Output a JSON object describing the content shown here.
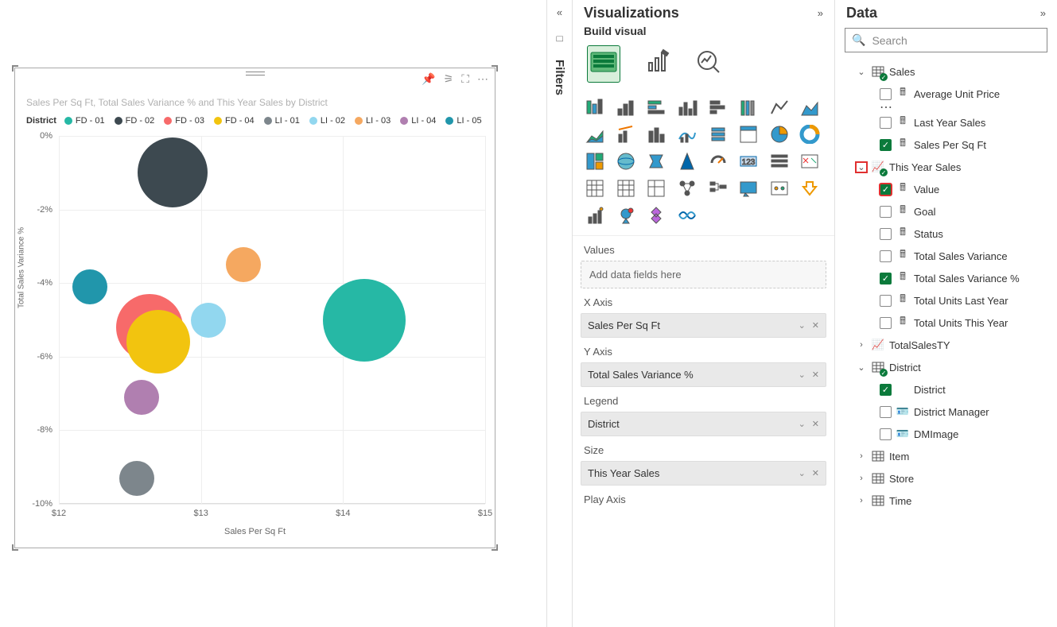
{
  "chart": {
    "title": "Sales Per Sq Ft, Total Sales Variance % and This Year Sales by District",
    "legend_title": "District",
    "xlabel": "Sales Per Sq Ft",
    "ylabel": "Total Sales Variance %",
    "xlim": [
      12,
      15
    ],
    "ylim": [
      -10,
      0
    ],
    "xticks": [
      {
        "v": 12,
        "l": "$12"
      },
      {
        "v": 13,
        "l": "$13"
      },
      {
        "v": 14,
        "l": "$14"
      },
      {
        "v": 15,
        "l": "$15"
      }
    ],
    "yticks": [
      {
        "v": 0,
        "l": "0%"
      },
      {
        "v": -2,
        "l": "-2%"
      },
      {
        "v": -4,
        "l": "-4%"
      },
      {
        "v": -6,
        "l": "-6%"
      },
      {
        "v": -8,
        "l": "-8%"
      },
      {
        "v": -10,
        "l": "-10%"
      }
    ],
    "series": [
      {
        "name": "FD - 01",
        "color": "#26b8a5",
        "x": 14.15,
        "y": -5.0,
        "r": 52
      },
      {
        "name": "FD - 02",
        "color": "#3d4950",
        "x": 12.8,
        "y": -1.0,
        "r": 44
      },
      {
        "name": "FD - 03",
        "color": "#f76a6a",
        "x": 12.64,
        "y": -5.2,
        "r": 42
      },
      {
        "name": "FD - 04",
        "color": "#f2c40f",
        "x": 12.7,
        "y": -5.6,
        "r": 40
      },
      {
        "name": "LI - 01",
        "color": "#7d868c",
        "x": 12.55,
        "y": -9.3,
        "r": 22
      },
      {
        "name": "LI - 02",
        "color": "#92d7ef",
        "x": 13.05,
        "y": -5.0,
        "r": 22
      },
      {
        "name": "LI - 03",
        "color": "#f5a860",
        "x": 13.3,
        "y": -3.5,
        "r": 22
      },
      {
        "name": "LI - 04",
        "color": "#b07fb0",
        "x": 12.58,
        "y": -7.1,
        "r": 22
      },
      {
        "name": "LI - 05",
        "color": "#2196ab",
        "x": 12.22,
        "y": -4.1,
        "r": 22
      }
    ]
  },
  "filters": {
    "label": "Filters"
  },
  "viz": {
    "title": "Visualizations",
    "subtitle": "Build visual",
    "wells": {
      "values": {
        "label": "Values",
        "placeholder": "Add data fields here"
      },
      "xaxis": {
        "label": "X Axis",
        "value": "Sales Per Sq Ft"
      },
      "yaxis": {
        "label": "Y Axis",
        "value": "Total Sales Variance %"
      },
      "legend": {
        "label": "Legend",
        "value": "District"
      },
      "size": {
        "label": "Size",
        "value": "This Year Sales"
      },
      "play": {
        "label": "Play Axis"
      }
    }
  },
  "data": {
    "title": "Data",
    "search_placeholder": "Search",
    "tables": {
      "sales": "Sales",
      "sales_fields": {
        "avg_unit_price": "Average Unit Price",
        "last_year_sales": "Last Year Sales",
        "sales_per_sqft": "Sales Per Sq Ft",
        "this_year_sales": "This Year Sales",
        "tys_value": "Value",
        "tys_goal": "Goal",
        "tys_status": "Status",
        "total_sales_var": "Total Sales Variance",
        "total_sales_var_pct": "Total Sales Variance %",
        "total_units_ly": "Total Units Last Year",
        "total_units_ty": "Total Units This Year",
        "total_sales_ty": "TotalSalesTY"
      },
      "district": "District",
      "district_fields": {
        "district": "District",
        "dm": "District Manager",
        "dmimage": "DMImage"
      },
      "item": "Item",
      "store": "Store",
      "time": "Time"
    }
  }
}
